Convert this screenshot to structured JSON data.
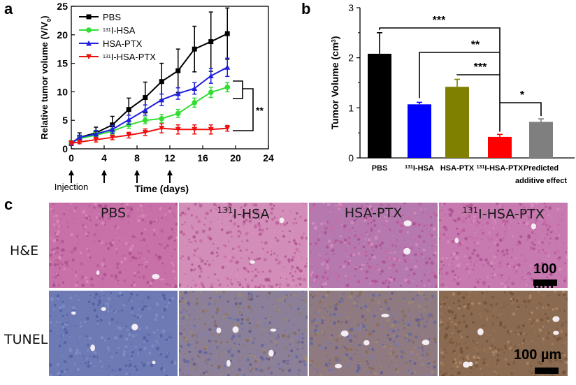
{
  "panels": {
    "a": "a",
    "b": "b",
    "c": "c"
  },
  "chart_data": [
    {
      "type": "line",
      "panel": "a",
      "xlabel": "Time (days)",
      "ylabel_html": "Relative tumor volume (V/V<tspan baseline-shift='sub' font-size='8'>0</tspan>)",
      "ylabel": "Relative tumor volume (V/V0)",
      "xlim": [
        0,
        24
      ],
      "ylim": [
        0,
        25
      ],
      "xticks": [
        0,
        4,
        8,
        12,
        16,
        20,
        24
      ],
      "yticks": [
        0,
        5,
        10,
        15,
        20,
        25
      ],
      "injection_days": [
        0,
        4,
        8,
        12
      ],
      "injection_label": "Injection",
      "significance": "**",
      "legend_position": "top-left",
      "series": [
        {
          "name": "PBS",
          "sup": "",
          "label": "PBS",
          "color": "#000000",
          "marker": "square",
          "x": [
            0,
            1,
            3,
            5,
            7,
            9,
            11,
            13,
            15,
            17,
            19
          ],
          "y": [
            1.0,
            2.0,
            2.8,
            4.2,
            6.9,
            9.0,
            11.8,
            13.7,
            17.5,
            18.8,
            20.2
          ],
          "err": [
            0.4,
            0.8,
            1.0,
            1.5,
            2.0,
            2.7,
            3.2,
            3.8,
            4.0,
            5.2,
            4.5
          ]
        },
        {
          "name": "131I-HSA",
          "sup": "131",
          "label": "I-HSA",
          "color": "#33dd33",
          "marker": "circle",
          "x": [
            0,
            1,
            3,
            5,
            7,
            9,
            11,
            13,
            15,
            17,
            19
          ],
          "y": [
            1.0,
            1.8,
            2.4,
            3.1,
            4.2,
            5.0,
            5.3,
            6.2,
            8.1,
            9.9,
            10.8
          ],
          "err": [
            0.3,
            0.4,
            0.5,
            0.5,
            0.6,
            0.6,
            0.7,
            0.7,
            0.8,
            0.9,
            0.8
          ]
        },
        {
          "name": "HSA-PTX",
          "sup": "",
          "label": "HSA-PTX",
          "color": "#1f1fdd",
          "marker": "triangle",
          "x": [
            0,
            1,
            3,
            5,
            7,
            9,
            11,
            13,
            15,
            17,
            19
          ],
          "y": [
            1.0,
            2.0,
            2.6,
            3.4,
            5.1,
            6.8,
            8.6,
            9.7,
            10.6,
            12.8,
            14.3
          ],
          "err": [
            0.3,
            0.4,
            0.6,
            0.7,
            0.8,
            0.9,
            1.0,
            1.0,
            1.0,
            1.3,
            1.6
          ]
        },
        {
          "name": "131I-HSA-PTX",
          "sup": "131",
          "label": "I-HSA-PTX",
          "color": "#ee1111",
          "marker": "triangle-down",
          "x": [
            0,
            1,
            3,
            5,
            7,
            9,
            11,
            13,
            15,
            17,
            19
          ],
          "y": [
            1.0,
            1.2,
            1.6,
            2.0,
            2.4,
            2.9,
            3.6,
            3.4,
            3.4,
            3.4,
            3.6
          ],
          "err": [
            0.2,
            0.3,
            0.4,
            0.4,
            0.5,
            0.6,
            0.8,
            0.8,
            0.8,
            0.8,
            0.5
          ]
        }
      ]
    },
    {
      "type": "bar",
      "panel": "b",
      "ylabel_html": "Tumor Volume (cm<tspan baseline-shift='super' font-size='8'>3</tspan>)",
      "ylabel": "Tumor Volume (cm3)",
      "ylim": [
        0,
        3
      ],
      "yticks": [
        0,
        1,
        2,
        3
      ],
      "categories": [
        {
          "sup": "",
          "label": "PBS"
        },
        {
          "sup": "131",
          "label": "I-HSA"
        },
        {
          "sup": "",
          "label": "HSA-PTX"
        },
        {
          "sup": "131",
          "label": "I-HSA-PTX"
        },
        {
          "sup": "",
          "label": "Predicted",
          "label2": "additive effect"
        }
      ],
      "values": [
        2.08,
        1.07,
        1.42,
        0.42,
        0.72
      ],
      "errors": [
        0.42,
        0.04,
        0.15,
        0.05,
        0.06
      ],
      "colors": [
        "#000000",
        "#0000ff",
        "#7f7f00",
        "#ff0000",
        "#7f7f7f"
      ],
      "significance": [
        {
          "from": 0,
          "to": 3,
          "label": "***"
        },
        {
          "from": 1,
          "to": 3,
          "label": "**"
        },
        {
          "from": 2,
          "to": 3,
          "label": "***"
        },
        {
          "from": 3,
          "to": 4,
          "label": "*"
        }
      ]
    }
  ],
  "micrographs": {
    "columns": [
      {
        "sup": "",
        "label": "PBS"
      },
      {
        "sup": "131",
        "label": "I-HSA"
      },
      {
        "sup": "",
        "label": "HSA-PTX"
      },
      {
        "sup": "131",
        "label": "I-HSA-PTX"
      }
    ],
    "rows": [
      "H&E",
      "TUNEL"
    ],
    "scale_bar": "100 µm"
  }
}
